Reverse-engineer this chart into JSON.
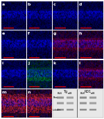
{
  "bg_color": "#000000",
  "fig_bg": "#ffffff",
  "label_color": "#ffffff",
  "label_fontsize": 4.5,
  "row_colors": [
    [
      "#0000cc",
      "#0000cc",
      "#0000cc",
      "#0000cc"
    ],
    [
      "#0000cc",
      "#0000cc",
      "#cc0000",
      "#cc0000"
    ],
    [
      "#0000cc",
      "#00aa00",
      "#0000aa",
      "#cc0000"
    ],
    [
      "#cc2200",
      "#cc2200"
    ]
  ],
  "wb_bg": "#e8e8e8",
  "col_group_labels": [
    "Tg",
    "RD1"
  ],
  "wb_sub_labels": [
    "BL6",
    "rd8",
    "BL6",
    "rd8"
  ],
  "wb_row_labels": [
    "Bax",
    "",
    "tubulin"
  ]
}
